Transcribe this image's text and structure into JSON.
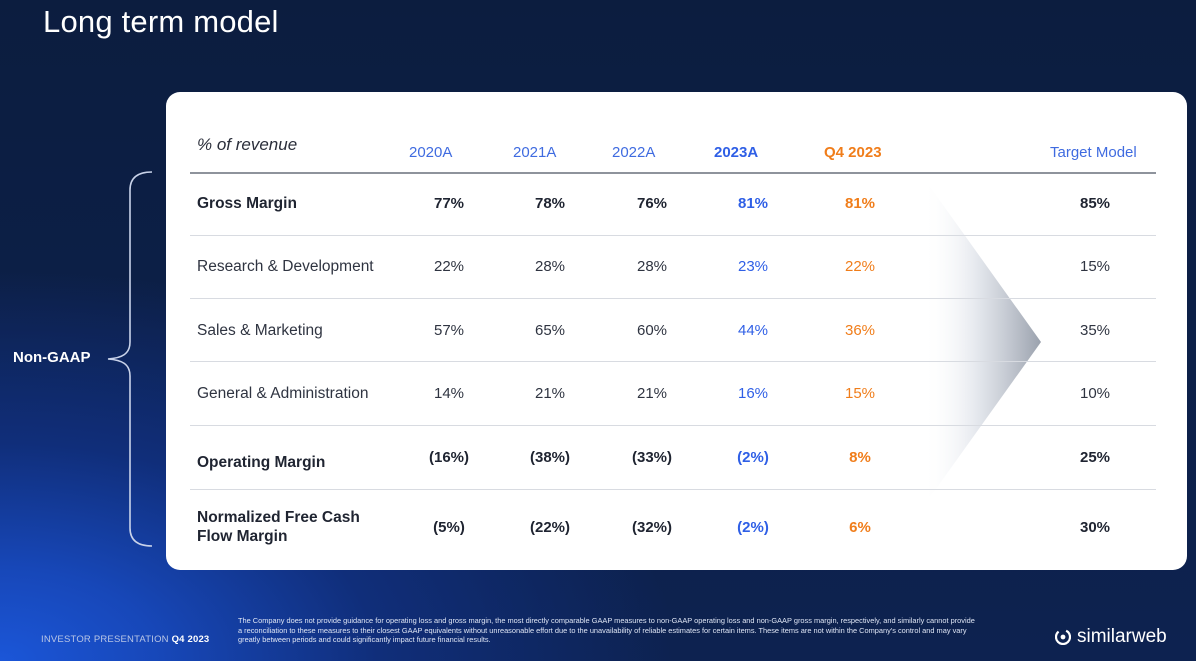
{
  "title": "Long term model",
  "side_label": "Non-GAAP",
  "table": {
    "header": [
      "% of revenue",
      "2020A",
      "2021A",
      "2022A",
      "2023A",
      "Q4 2023",
      "Target Model"
    ],
    "rows": [
      {
        "label": "Gross Margin",
        "bold": true,
        "values": [
          "77%",
          "78%",
          "76%",
          "81%",
          "81%",
          "85%"
        ]
      },
      {
        "label": "Research & Development",
        "bold": false,
        "values": [
          "22%",
          "28%",
          "28%",
          "23%",
          "22%",
          "15%"
        ]
      },
      {
        "label": "Sales & Marketing",
        "bold": false,
        "values": [
          "57%",
          "65%",
          "60%",
          "44%",
          "36%",
          "35%"
        ]
      },
      {
        "label": "General & Administration",
        "bold": false,
        "values": [
          "14%",
          "21%",
          "21%",
          "16%",
          "15%",
          "10%"
        ]
      },
      {
        "label": "Operating Margin",
        "bold": true,
        "values": [
          "(16%)",
          "(38%)",
          "(33%)",
          "(2%)",
          "8%",
          "25%"
        ]
      },
      {
        "label_line1": "Normalized Free Cash",
        "label_line2": "Flow Margin",
        "bold": true,
        "values": [
          "(5%)",
          "(22%)",
          "(32%)",
          "(2%)",
          "6%",
          "30%"
        ]
      }
    ]
  },
  "footer": {
    "left_prefix": "INVESTOR PRESENTATION",
    "left_period": "Q4 2023",
    "disclaimer": "The Company does not provide guidance for operating loss and gross margin, the most directly comparable GAAP measures to non-GAAP operating loss and non-GAAP gross margin, respectively, and similarly cannot provide a reconciliation to these measures to their closest GAAP equivalents without unreasonable effort due to the unavailability of reliable estimates for certain items. These items are not within the Company's control and may vary greatly between periods and could significantly impact future financial results.",
    "logo_text": "similarweb",
    "logo_icon": "similarweb-logo-icon"
  },
  "colors": {
    "accent_blue": "#2f5fe6",
    "accent_orange": "#f07d1a"
  }
}
